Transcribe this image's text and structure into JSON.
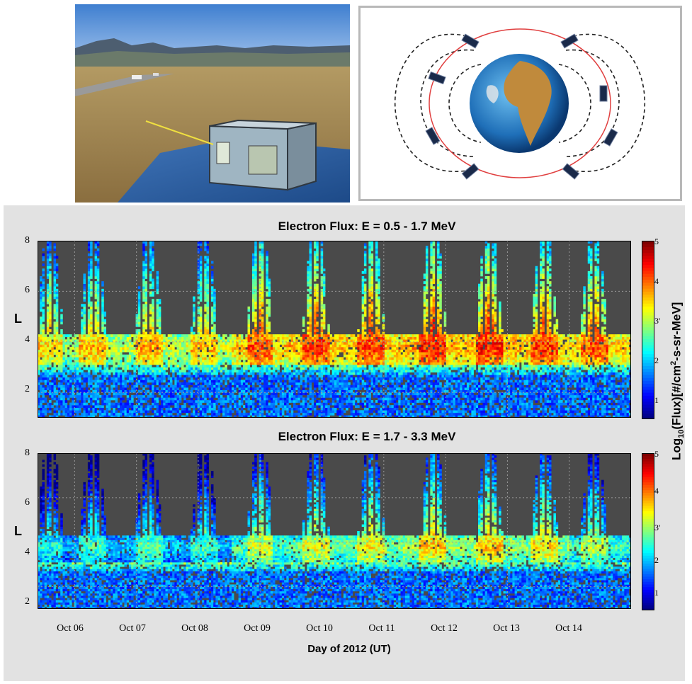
{
  "images": {
    "photo_alt": "Field photo of instrument box on blue vehicle roof with mountains",
    "orbit_alt": "Diagram of Earth with satellite constellation along magnetic field lines"
  },
  "colors": {
    "panel_background": "#4a4a4a",
    "figure_background": "#e2e2e2",
    "orbit_ring": "#e04040",
    "field_lines": "#222222"
  },
  "chart_data": [
    {
      "type": "heatmap",
      "title": "Electron Flux: E = 0.5 - 1.7 MeV",
      "ylabel": "L",
      "xlabel": "Day of 2012 (UT)",
      "ylim": [
        1,
        8
      ],
      "yticks": [
        "2",
        "4",
        "6",
        "8"
      ],
      "xticks": [
        "Oct 06",
        "Oct 07",
        "Oct 08",
        "Oct 09",
        "Oct 10",
        "Oct 11",
        "Oct 12",
        "Oct 13",
        "Oct 14"
      ],
      "grid": true,
      "colorbar": {
        "label": "Log10(Flux)[#/cm2-s-sr-MeV]",
        "range": [
          0.5,
          5
        ],
        "ticks": [
          "1",
          "2",
          "3'",
          "4",
          "5"
        ]
      },
      "passes": [
        {
          "day": 5.6,
          "peak": 4.0
        },
        {
          "day": 6.3,
          "peak": 4.1
        },
        {
          "day": 7.2,
          "peak": 4.2
        },
        {
          "day": 8.1,
          "peak": 4.1
        },
        {
          "day": 9.0,
          "peak": 4.6
        },
        {
          "day": 9.9,
          "peak": 4.7
        },
        {
          "day": 10.8,
          "peak": 4.7
        },
        {
          "day": 11.8,
          "peak": 4.8
        },
        {
          "day": 12.7,
          "peak": 4.8
        },
        {
          "day": 13.6,
          "peak": 4.7
        },
        {
          "day": 14.4,
          "peak": 4.6
        }
      ]
    },
    {
      "type": "heatmap",
      "title": "Electron Flux: E = 1.7 - 3.3 MeV",
      "ylabel": "L",
      "xlabel": "Day of 2012 (UT)",
      "ylim": [
        1,
        8
      ],
      "yticks": [
        "2",
        "4",
        "6",
        "8"
      ],
      "xticks": [
        "Oct 06",
        "Oct 07",
        "Oct 08",
        "Oct 09",
        "Oct 10",
        "Oct 11",
        "Oct 12",
        "Oct 13",
        "Oct 14"
      ],
      "grid": true,
      "colorbar": {
        "label": "Log10(Flux)[#/cm2-s-sr-MeV]",
        "range": [
          0.5,
          5
        ],
        "ticks": [
          "1",
          "2",
          "3'",
          "4",
          "5"
        ]
      },
      "passes": [
        {
          "day": 5.6,
          "peak": 2.8
        },
        {
          "day": 6.3,
          "peak": 3.0
        },
        {
          "day": 7.2,
          "peak": 3.1
        },
        {
          "day": 8.1,
          "peak": 3.0
        },
        {
          "day": 9.0,
          "peak": 3.6
        },
        {
          "day": 9.9,
          "peak": 3.7
        },
        {
          "day": 10.8,
          "peak": 3.8
        },
        {
          "day": 11.8,
          "peak": 4.0
        },
        {
          "day": 12.7,
          "peak": 4.0
        },
        {
          "day": 13.6,
          "peak": 3.9
        },
        {
          "day": 14.4,
          "peak": 3.5
        }
      ]
    }
  ],
  "shared_xlabel": "Day of 2012 (UT)",
  "shared_cb_label_main": "Log",
  "shared_cb_label_sub": "10",
  "shared_cb_label_rest": "(Flux)[#/cm",
  "shared_cb_label_sup": "2",
  "shared_cb_label_end": "-s-sr-MeV]"
}
